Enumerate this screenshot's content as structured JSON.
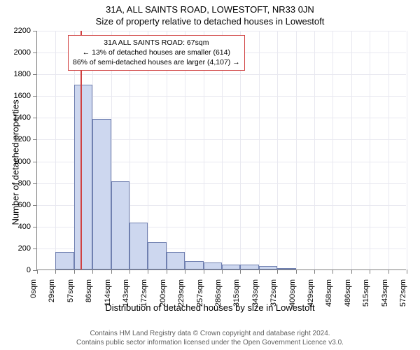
{
  "title": "31A, ALL SAINTS ROAD, LOWESTOFT, NR33 0JN",
  "subtitle": "Size of property relative to detached houses in Lowestoft",
  "chart": {
    "type": "histogram",
    "y_axis_title": "Number of detached properties",
    "x_axis_title": "Distribution of detached houses by size in Lowestoft",
    "ylim": [
      0,
      2200
    ],
    "ytick_step": 200,
    "xticks": [
      "0sqm",
      "29sqm",
      "57sqm",
      "86sqm",
      "114sqm",
      "143sqm",
      "172sqm",
      "200sqm",
      "229sqm",
      "257sqm",
      "286sqm",
      "315sqm",
      "343sqm",
      "372sqm",
      "400sqm",
      "429sqm",
      "458sqm",
      "486sqm",
      "515sqm",
      "543sqm",
      "572sqm"
    ],
    "bars": [
      {
        "x_index": 1,
        "value": 160
      },
      {
        "x_index": 2,
        "value": 1700
      },
      {
        "x_index": 3,
        "value": 1380
      },
      {
        "x_index": 4,
        "value": 810
      },
      {
        "x_index": 5,
        "value": 430
      },
      {
        "x_index": 6,
        "value": 250
      },
      {
        "x_index": 7,
        "value": 160
      },
      {
        "x_index": 8,
        "value": 80
      },
      {
        "x_index": 9,
        "value": 65
      },
      {
        "x_index": 10,
        "value": 45
      },
      {
        "x_index": 11,
        "value": 45
      },
      {
        "x_index": 12,
        "value": 30
      },
      {
        "x_index": 13,
        "value": 10
      }
    ],
    "bar_color": "#cdd7ef",
    "bar_border_color": "#7080b0",
    "marker": {
      "position_sqm": 67,
      "color": "#d04040"
    },
    "info_box": {
      "line1": "31A ALL SAINTS ROAD: 67sqm",
      "line2": "← 13% of detached houses are smaller (614)",
      "line3": "86% of semi-detached houses are larger (4,107) →",
      "border_color": "#d04040"
    },
    "grid_color": "#e8e8f0",
    "axis_color": "#808080",
    "background_color": "#ffffff",
    "title_fontsize": 13,
    "label_fontsize": 11,
    "axis_title_fontsize": 13
  },
  "attribution": {
    "line1": "Contains HM Land Registry data © Crown copyright and database right 2024.",
    "line2": "Contains public sector information licensed under the Open Government Licence v3.0."
  }
}
